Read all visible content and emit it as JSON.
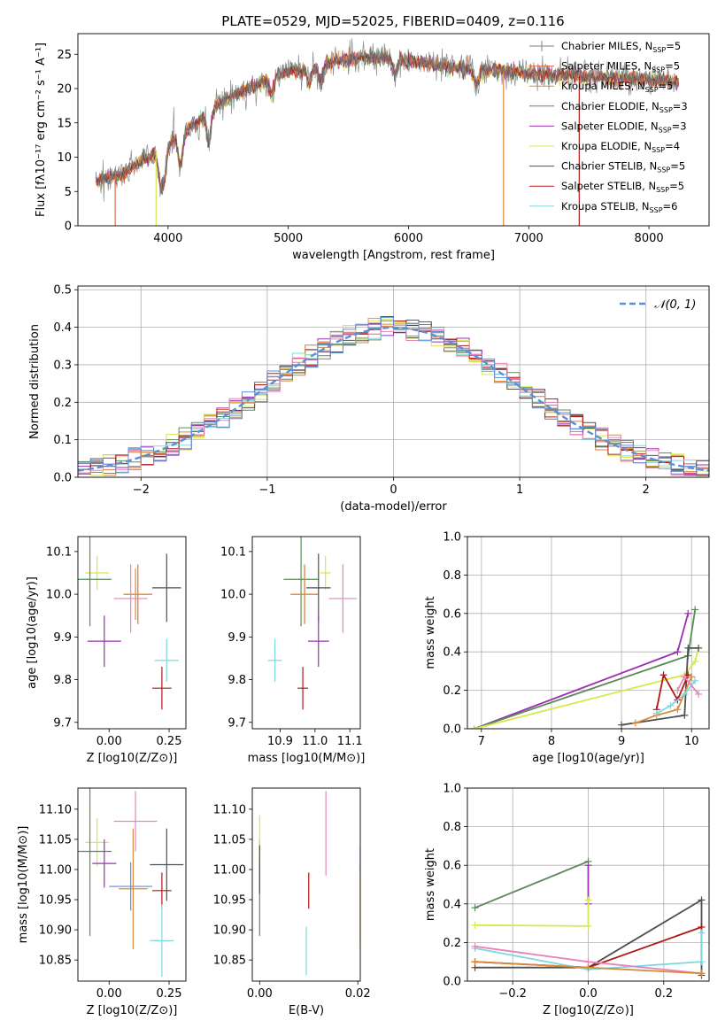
{
  "page_title": "PLATE=0529, MJD=52025, FIBERID=0409, z=0.116",
  "colors": {
    "Chabrier MILES": "#7f7f7f",
    "Salpeter MILES": "#e07040",
    "Kroupa MILES": "#d98a3a",
    "Chabrier ELODIE": "#5b8a5b",
    "Salpeter ELODIE": "#9b30b0",
    "Kroupa ELODIE": "#d6e84a",
    "Chabrier STELIB": "#505050",
    "Salpeter STELIB": "#b01818",
    "Kroupa STELIB": "#7ed8e0",
    "Salpeter STELIB pink": "#e884b8",
    "normal": "#5b8fd8"
  },
  "chart_data": [
    {
      "id": "spectrum",
      "type": "line",
      "xlabel": "wavelength [Angstrom, rest frame]",
      "ylabel": "Flux [fλ10⁻¹⁷ erg cm⁻² s⁻¹ A⁻¹]",
      "xlim": [
        3250,
        8500
      ],
      "ylim": [
        0,
        28
      ],
      "xticks": [
        4000,
        5000,
        6000,
        7000,
        8000
      ],
      "yticks": [
        0,
        5,
        10,
        15,
        20,
        25
      ],
      "legend": [
        {
          "name": "Chabrier MILES, N_SSP=5",
          "color": "#7f7f7f",
          "marker": "+"
        },
        {
          "name": "Salpeter MILES, N_SSP=5",
          "color": "#e07040"
        },
        {
          "name": "Kroupa MILES, N_SSP=5",
          "color": "#d98a3a"
        },
        {
          "name": "Chabrier ELODIE, N_SSP=3",
          "color": "#5b8a5b"
        },
        {
          "name": "Salpeter ELODIE, N_SSP=3",
          "color": "#9b30b0"
        },
        {
          "name": "Kroupa ELODIE, N_SSP=4",
          "color": "#d6e84a"
        },
        {
          "name": "Chabrier STELIB, N_SSP=5",
          "color": "#505050"
        },
        {
          "name": "Salpeter STELIB, N_SSP=5",
          "color": "#b01818"
        },
        {
          "name": "Kroupa STELIB, N_SSP=6",
          "color": "#7ed8e0"
        }
      ],
      "continuum": {
        "x": [
          3400,
          3600,
          3800,
          4000,
          4200,
          4400,
          4600,
          4800,
          5000,
          5200,
          5400,
          5600,
          5800,
          6000,
          6200,
          6400,
          6600,
          6800,
          7000,
          7200,
          7400,
          7600,
          7800,
          8000,
          8200
        ],
        "y": [
          6.5,
          7.5,
          9.5,
          12.0,
          14.5,
          17.5,
          19.5,
          21.0,
          22.5,
          23.0,
          24.0,
          24.5,
          24.5,
          24.0,
          23.5,
          23.0,
          22.8,
          22.5,
          22.2,
          22.0,
          21.8,
          21.6,
          21.5,
          21.3,
          21.0
        ]
      },
      "drops": [
        {
          "x": 3560,
          "color": "#e07040"
        },
        {
          "x": 3900,
          "color": "#d6e84a"
        },
        {
          "x": 6790,
          "color": "#d98a3a"
        },
        {
          "x": 7420,
          "color": "#b01818"
        }
      ]
    },
    {
      "id": "residuals",
      "type": "step",
      "xlabel": "(data-model)/error",
      "ylabel": "Normed distribution",
      "xlim": [
        -2.5,
        2.5
      ],
      "ylim": [
        0,
        0.51
      ],
      "xticks": [
        -2,
        -1,
        0,
        1,
        2
      ],
      "yticks": [
        0.0,
        0.1,
        0.2,
        0.3,
        0.4,
        0.5
      ],
      "grid": true,
      "legend": [
        {
          "name": "N(0,1)",
          "color": "#5b8fd8",
          "style": "dashed"
        }
      ],
      "bins": {
        "start": -2.5,
        "width": 0.1
      }
    },
    {
      "id": "age_vs_Z",
      "type": "errorbar",
      "xlabel": "Z [log10(Z/Z⊙)]",
      "ylabel": "age  [log10(age/yr)]",
      "xlim": [
        -0.13,
        0.32
      ],
      "ylim": [
        9.685,
        10.135
      ],
      "xticks": [
        0.0,
        0.25
      ],
      "yticks": [
        9.7,
        9.8,
        9.9,
        10.0,
        10.1
      ],
      "points": [
        {
          "x": -0.05,
          "y": 10.05,
          "xerr": 0.05,
          "yerr": 0.04,
          "color": "#d6e84a"
        },
        {
          "x": -0.08,
          "y": 10.035,
          "xerr": 0.09,
          "yerr": 0.11,
          "color": "#5b8a5b"
        },
        {
          "x": 0.12,
          "y": 10.0,
          "xerr": 0.06,
          "yerr": 0.07,
          "color": "#e07040"
        },
        {
          "x": 0.11,
          "y": 10.0,
          "xerr": 0.05,
          "yerr": 0.06,
          "color": "#d98a3a"
        },
        {
          "x": 0.09,
          "y": 9.99,
          "xerr": 0.07,
          "yerr": 0.08,
          "color": "#e884b8"
        },
        {
          "x": 0.24,
          "y": 10.015,
          "xerr": 0.06,
          "yerr": 0.08,
          "color": "#505050"
        },
        {
          "x": -0.02,
          "y": 9.89,
          "xerr": 0.07,
          "yerr": 0.06,
          "color": "#9b30b0"
        },
        {
          "x": 0.24,
          "y": 9.845,
          "xerr": 0.05,
          "yerr": 0.05,
          "color": "#7ed8e0"
        },
        {
          "x": 0.22,
          "y": 9.78,
          "xerr": 0.04,
          "yerr": 0.05,
          "color": "#b01818"
        }
      ]
    },
    {
      "id": "age_vs_mass",
      "type": "errorbar",
      "xlabel": "mass [log10(M/M⊙)]",
      "ylabel": "",
      "xlim": [
        10.82,
        11.13
      ],
      "ylim": [
        9.685,
        10.135
      ],
      "xticks": [
        10.9,
        11.0,
        11.1
      ],
      "yticks": [
        9.7,
        9.8,
        9.9,
        10.0,
        10.1
      ],
      "points": [
        {
          "x": 11.03,
          "y": 10.05,
          "xerr": 0.015,
          "yerr": 0.04,
          "color": "#d6e84a"
        },
        {
          "x": 10.96,
          "y": 10.035,
          "xerr": 0.05,
          "yerr": 0.11,
          "color": "#5b8a5b"
        },
        {
          "x": 10.97,
          "y": 10.0,
          "xerr": 0.04,
          "yerr": 0.07,
          "color": "#e07040"
        },
        {
          "x": 10.97,
          "y": 10.0,
          "xerr": 0.04,
          "yerr": 0.06,
          "color": "#d98a3a"
        },
        {
          "x": 11.08,
          "y": 9.99,
          "xerr": 0.04,
          "yerr": 0.08,
          "color": "#e884b8"
        },
        {
          "x": 11.01,
          "y": 10.015,
          "xerr": 0.035,
          "yerr": 0.08,
          "color": "#505050"
        },
        {
          "x": 11.01,
          "y": 9.89,
          "xerr": 0.03,
          "yerr": 0.06,
          "color": "#9b30b0"
        },
        {
          "x": 10.885,
          "y": 9.845,
          "xerr": 0.02,
          "yerr": 0.05,
          "color": "#7ed8e0"
        },
        {
          "x": 10.965,
          "y": 9.78,
          "xerr": 0.015,
          "yerr": 0.05,
          "color": "#b01818"
        }
      ]
    },
    {
      "id": "weight_vs_age",
      "type": "line",
      "xlabel": "age  [log10(age/yr)]",
      "ylabel": "mass weight",
      "xlim": [
        6.8,
        10.25
      ],
      "ylim": [
        0,
        1.0
      ],
      "xticks": [
        7,
        8,
        9,
        10
      ],
      "yticks": [
        0.0,
        0.2,
        0.4,
        0.6,
        0.8,
        1.0
      ],
      "grid": true,
      "series": [
        {
          "color": "#9b30b0",
          "x": [
            6.9,
            9.8,
            9.95
          ],
          "y": [
            0.0,
            0.4,
            0.6
          ]
        },
        {
          "color": "#5b8a5b",
          "x": [
            6.9,
            9.95,
            10.05
          ],
          "y": [
            0.0,
            0.38,
            0.62
          ]
        },
        {
          "color": "#d6e84a",
          "x": [
            6.9,
            9.9,
            10.05,
            10.1
          ],
          "y": [
            0.0,
            0.28,
            0.35,
            0.42
          ]
        },
        {
          "color": "#505050",
          "x": [
            9.0,
            9.9,
            9.95,
            10.1
          ],
          "y": [
            0.02,
            0.07,
            0.42,
            0.42
          ]
        },
        {
          "color": "#b01818",
          "x": [
            9.5,
            9.6,
            9.8,
            9.95
          ],
          "y": [
            0.1,
            0.28,
            0.15,
            0.28
          ]
        },
        {
          "color": "#d98a3a",
          "x": [
            9.2,
            9.5,
            9.8,
            10.0
          ],
          "y": [
            0.03,
            0.07,
            0.1,
            0.27
          ]
        },
        {
          "color": "#7ed8e0",
          "x": [
            9.5,
            9.7,
            9.9,
            10.05
          ],
          "y": [
            0.08,
            0.12,
            0.18,
            0.25
          ]
        },
        {
          "color": "#e884b8",
          "x": [
            9.8,
            9.9,
            10.1
          ],
          "y": [
            0.2,
            0.27,
            0.18
          ]
        }
      ]
    },
    {
      "id": "mass_vs_Z",
      "type": "errorbar",
      "xlabel": "Z [log10(Z/Z⊙)]",
      "ylabel": "mass [log10(M/M⊙)]",
      "xlim": [
        -0.13,
        0.32
      ],
      "ylim": [
        10.815,
        11.135
      ],
      "xticks": [
        0.0,
        0.25
      ],
      "yticks": [
        10.85,
        10.9,
        10.95,
        11.0,
        11.05,
        11.1
      ],
      "points": [
        {
          "x": -0.05,
          "y": 11.045,
          "xerr": 0.05,
          "yerr": 0.04,
          "color": "#d6e84a"
        },
        {
          "x": -0.08,
          "y": 11.03,
          "xerr": 0.09,
          "yerr": 0.14,
          "color": "#5b8a5b"
        },
        {
          "x": -0.02,
          "y": 11.01,
          "xerr": 0.05,
          "yerr": 0.04,
          "color": "#9b30b0"
        },
        {
          "x": 0.11,
          "y": 11.08,
          "xerr": 0.09,
          "yerr": 0.05,
          "color": "#e884b8"
        },
        {
          "x": 0.24,
          "y": 11.008,
          "xerr": 0.07,
          "yerr": 0.06,
          "color": "#505050"
        },
        {
          "x": 0.09,
          "y": 10.972,
          "xerr": 0.09,
          "yerr": 0.04,
          "color": "#5b8fd8"
        },
        {
          "x": 0.1,
          "y": 10.968,
          "xerr": 0.06,
          "yerr": 0.1,
          "color": "#d98a3a"
        },
        {
          "x": 0.22,
          "y": 10.965,
          "xerr": 0.04,
          "yerr": 0.03,
          "color": "#b01818"
        },
        {
          "x": 0.22,
          "y": 10.882,
          "xerr": 0.05,
          "yerr": 0.06,
          "color": "#7ed8e0"
        }
      ]
    },
    {
      "id": "mass_vs_EBV",
      "type": "errorbar",
      "xlabel": "E(B-V)",
      "ylabel": "",
      "xlim": [
        -0.0015,
        0.0205
      ],
      "ylim": [
        10.815,
        11.135
      ],
      "xticks": [
        0.0,
        0.02
      ],
      "yticks": [
        10.85,
        10.9,
        10.95,
        11.0,
        11.05,
        11.1
      ],
      "points": [
        {
          "x": 0.0,
          "y": 10.97,
          "xerr": 0.0,
          "yerr": 0.08,
          "color": "#5b8a5b"
        },
        {
          "x": 0.0,
          "y": 11.05,
          "xerr": 0.0,
          "yerr": 0.04,
          "color": "#d6e84a"
        },
        {
          "x": 0.0,
          "y": 11.0,
          "xerr": 0.0,
          "yerr": 0.04,
          "color": "#505050"
        },
        {
          "x": 0.0135,
          "y": 11.06,
          "xerr": 0.0,
          "yerr": 0.07,
          "color": "#e884b8"
        },
        {
          "x": 0.01,
          "y": 10.965,
          "xerr": 0.0,
          "yerr": 0.03,
          "color": "#b01818"
        },
        {
          "x": 0.0095,
          "y": 10.865,
          "xerr": 0.0,
          "yerr": 0.04,
          "color": "#7ed8e0"
        },
        {
          "x": 0.0205,
          "y": 10.94,
          "xerr": 0.0,
          "yerr": 0.07,
          "color": "#d98a3a"
        },
        {
          "x": 0.0205,
          "y": 11.02,
          "xerr": 0.0,
          "yerr": 0.02,
          "color": "#5b8fd8"
        }
      ]
    },
    {
      "id": "weight_vs_Z",
      "type": "line",
      "xlabel": "Z [log10(Z/Z⊙)]",
      "ylabel": "mass weight",
      "xlim": [
        -0.32,
        0.32
      ],
      "ylim": [
        0,
        1.0
      ],
      "xticks": [
        -0.2,
        0.0,
        0.2
      ],
      "yticks": [
        0.0,
        0.2,
        0.4,
        0.6,
        0.8,
        1.0
      ],
      "grid": true,
      "series": [
        {
          "color": "#5b8a5b",
          "x": [
            -0.3,
            0.0
          ],
          "y": [
            0.38,
            0.62
          ]
        },
        {
          "color": "#9b30b0",
          "x": [
            0.0,
            0.0
          ],
          "y": [
            0.6,
            0.4
          ]
        },
        {
          "color": "#d6e84a",
          "x": [
            -0.3,
            0.0,
            0.0
          ],
          "y": [
            0.29,
            0.285,
            0.42
          ]
        },
        {
          "color": "#505050",
          "x": [
            -0.3,
            0.0,
            0.3,
            0.3
          ],
          "y": [
            0.07,
            0.07,
            0.42,
            0.03
          ]
        },
        {
          "color": "#b01818",
          "x": [
            -0.3,
            0.0,
            0.3
          ],
          "y": [
            0.1,
            0.07,
            0.28
          ]
        },
        {
          "color": "#7ed8e0",
          "x": [
            -0.3,
            0.0,
            0.3,
            0.3
          ],
          "y": [
            0.17,
            0.06,
            0.1,
            0.25
          ]
        },
        {
          "color": "#e884b8",
          "x": [
            -0.3,
            0.0,
            0.3
          ],
          "y": [
            0.18,
            0.1,
            0.04
          ]
        },
        {
          "color": "#d98a3a",
          "x": [
            -0.3,
            0.0,
            0.3
          ],
          "y": [
            0.1,
            0.07,
            0.04
          ]
        }
      ]
    }
  ]
}
